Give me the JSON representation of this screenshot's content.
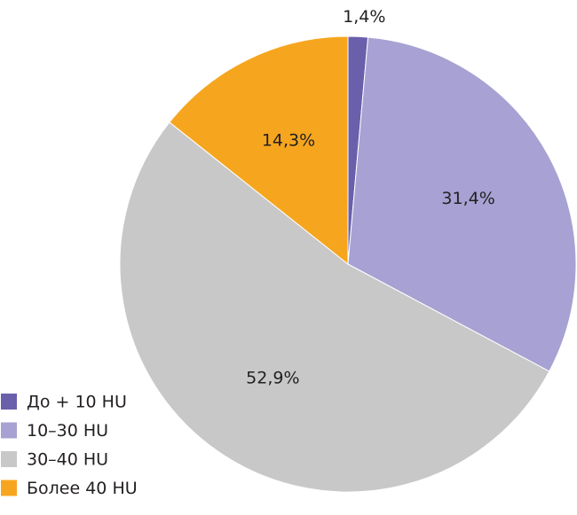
{
  "chart_data": {
    "type": "pie",
    "categories": [
      "До + 10 HU",
      "10–30 HU",
      "30–40 HU",
      "Более 40 HU"
    ],
    "values": [
      1.4,
      31.4,
      52.9,
      14.3
    ],
    "value_labels": [
      "1,4%",
      "31,4%",
      "52,9%",
      "14,3%"
    ],
    "colors": [
      "#6a5fab",
      "#a7a2d3",
      "#c8c8c9",
      "#f6a61e"
    ],
    "legend": "lower left"
  }
}
